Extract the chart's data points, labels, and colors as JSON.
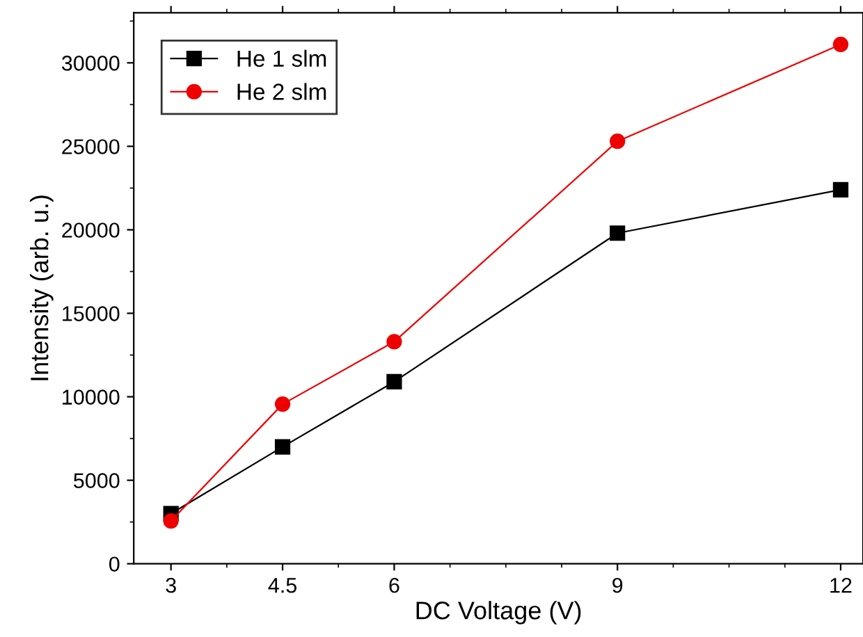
{
  "chart_data": {
    "type": "line",
    "xlabel": "DC Voltage (V)",
    "ylabel": "Intensity (arb. u.)",
    "x": [
      3,
      4.5,
      6,
      9,
      12
    ],
    "series": [
      {
        "name": "He 1 slm",
        "color": "#000000",
        "marker": "square",
        "values": [
          3000,
          7000,
          10900,
          19800,
          22400
        ]
      },
      {
        "name": "He 2 slm",
        "color": "#ee0000",
        "marker": "circle",
        "values": [
          2560,
          9560,
          13300,
          25300,
          31100
        ]
      }
    ],
    "xlim": [
      2.5,
      12.3
    ],
    "xticks": [
      3,
      4.5,
      6,
      9,
      12
    ],
    "ylim": [
      0,
      33000
    ],
    "yticks": [
      0,
      5000,
      10000,
      15000,
      20000,
      25000,
      30000
    ],
    "grid": false,
    "legend": "top left",
    "line_style": "solid"
  }
}
